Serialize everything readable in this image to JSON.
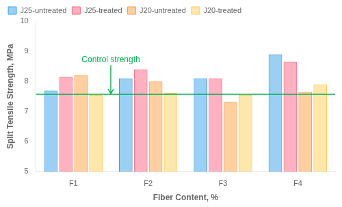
{
  "chart_data": {
    "type": "bar",
    "categories": [
      "F1",
      "F2",
      "F3",
      "F4"
    ],
    "series": [
      {
        "name": "J25-untreated",
        "values": [
          7.7,
          8.1,
          8.1,
          8.9
        ]
      },
      {
        "name": "J25-treated",
        "values": [
          8.15,
          8.4,
          8.1,
          8.65
        ]
      },
      {
        "name": "J20-untreated",
        "values": [
          8.2,
          8.0,
          7.32,
          7.65
        ]
      },
      {
        "name": "J20-treated",
        "values": [
          7.55,
          7.62,
          7.55,
          7.9
        ]
      }
    ],
    "xlabel": "Fiber Content, %",
    "ylabel": "Split Tensile Strength, MPa",
    "ylim": [
      5,
      10
    ],
    "yticks": [
      5,
      6,
      7,
      8,
      9,
      10
    ],
    "grid": false,
    "legend": "upper left",
    "annotations": [
      {
        "text": "Control strength",
        "y": 7.57,
        "color": "#00B050"
      }
    ]
  }
}
